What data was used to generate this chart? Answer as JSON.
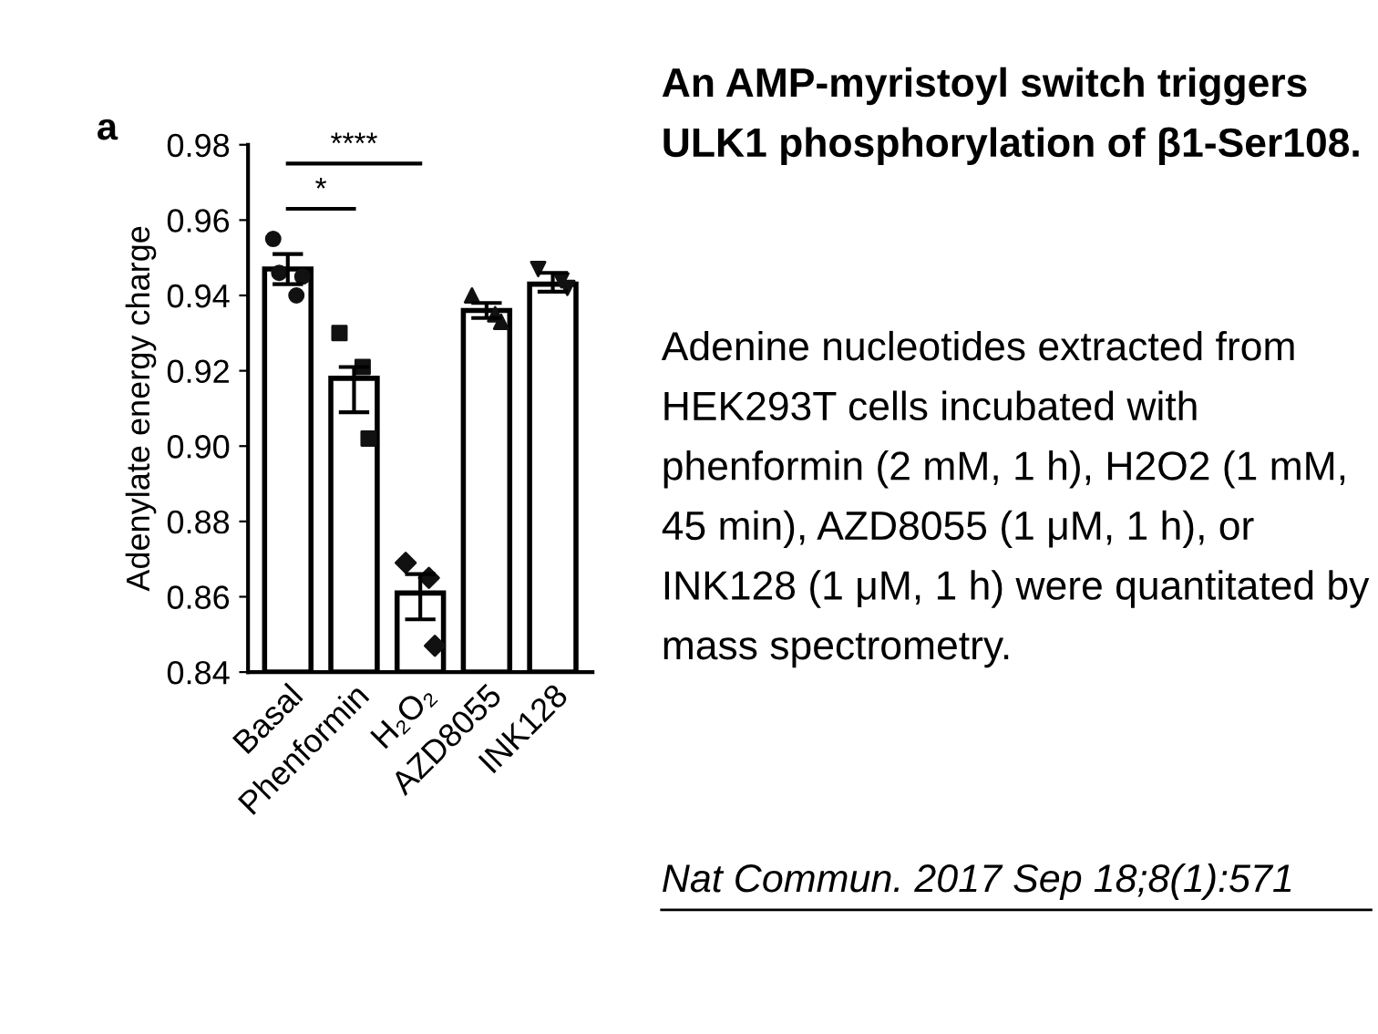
{
  "chart_data": {
    "type": "bar",
    "title": "An AMP-myristoyl switch triggers ULK1 phosphorylation of β1-Ser108.",
    "subtitle": "Adenine nucleotides extracted from HEK293T cells incubated with phenformin (2 mM, 1 h), H2O2 (1 mM, 45 min), AZD8055 (1 μM, 1 h), or INK128 (1 μM, 1 h) were quantitated by mass spectrometry.",
    "annotations": [
      "a",
      "Nat Commun. 2017 Sep 18;8(1):571",
      "*",
      "****"
    ],
    "ylabel": "Adenylate energy charge",
    "categories": [
      "Basal",
      "Phenformin",
      "H₂O₂",
      "AZD8055",
      "INK128"
    ],
    "series": [
      {
        "color": "#ffffff",
        "values": [
          0.947,
          0.918,
          0.861,
          0.936,
          0.943
        ],
        "errors": [
          [
            0.943,
            0.951
          ],
          [
            0.909,
            0.921
          ],
          [
            0.854,
            0.866
          ],
          [
            0.934,
            0.938
          ],
          [
            0.941,
            0.946
          ]
        ]
      },
      {
        "type": "scatter",
        "color": "#111111",
        "marker": "circle",
        "x": [
          "Basal",
          "Basal",
          "Basal",
          "Basal"
        ],
        "values": [
          0.955,
          0.946,
          0.94,
          0.945
        ]
      },
      {
        "type": "scatter",
        "color": "#111111",
        "marker": "square",
        "x": [
          "Phenformin",
          "Phenformin",
          "Phenformin"
        ],
        "values": [
          0.93,
          0.921,
          0.902
        ]
      },
      {
        "type": "scatter",
        "color": "#111111",
        "marker": "diamond",
        "x": [
          "H₂O₂",
          "H₂O₂",
          "H₂O₂"
        ],
        "values": [
          0.869,
          0.865,
          0.847
        ]
      },
      {
        "type": "scatter",
        "color": "#111111",
        "marker": "triangle",
        "x": [
          "AZD8055",
          "AZD8055",
          "AZD8055"
        ],
        "values": [
          0.94,
          0.935,
          0.933
        ]
      },
      {
        "type": "scatter",
        "color": "#111111",
        "marker": "triangle_down",
        "x": [
          "INK128",
          "INK128",
          "INK128"
        ],
        "values": [
          0.947,
          0.944,
          0.942
        ]
      }
    ],
    "ylim": [
      0.84,
      0.98
    ],
    "yticks": [
      {
        "value": 0.84,
        "label": "0.84"
      },
      {
        "value": 0.86,
        "label": "0.86"
      },
      {
        "value": 0.88,
        "label": "0.88"
      },
      {
        "value": 0.9,
        "label": "0.90"
      },
      {
        "value": 0.92,
        "label": "0.92"
      },
      {
        "value": 0.94,
        "label": "0.94"
      },
      {
        "value": 0.96,
        "label": "0.96"
      },
      {
        "value": 0.98,
        "label": "0.98"
      }
    ],
    "grid": false,
    "legend": false
  }
}
